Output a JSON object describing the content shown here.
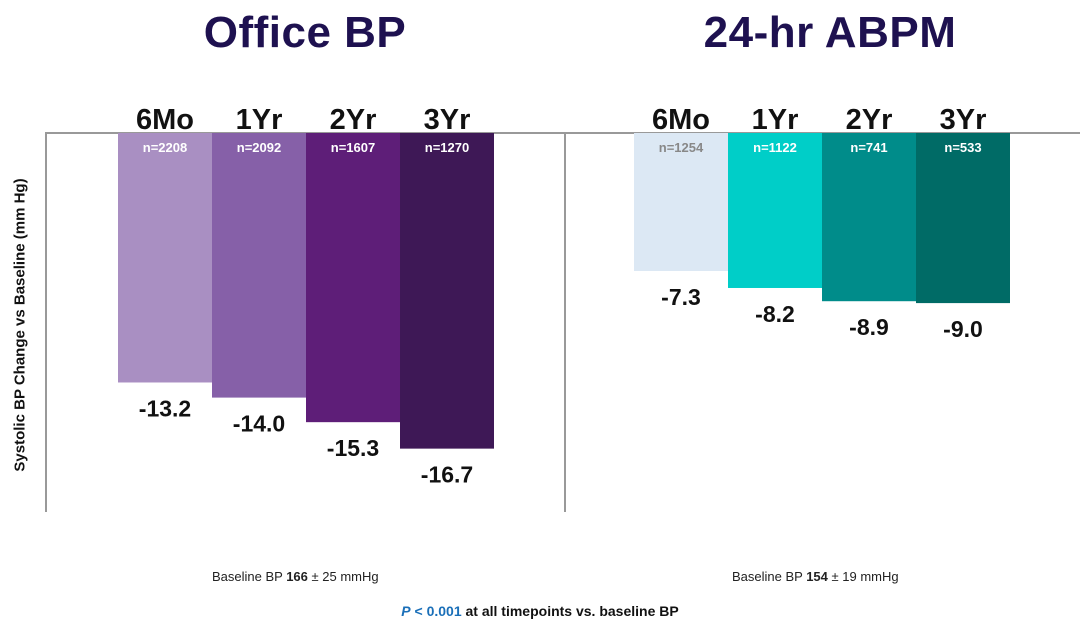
{
  "chart_data": [
    {
      "type": "bar",
      "title": "Office BP",
      "ylabel": "Systolic BP Change vs Baseline (mm Hg)",
      "categories": [
        "6Mo",
        "1Yr",
        "2Yr",
        "3Yr"
      ],
      "n_labels": [
        "n=2208",
        "n=2092",
        "n=1607",
        "n=1270"
      ],
      "values": [
        -13.2,
        -14.0,
        -15.3,
        -16.7
      ],
      "value_labels": [
        "-13.2",
        "-14.0",
        "-15.3",
        "-16.7"
      ],
      "ylim": [
        -19,
        0
      ],
      "colors": [
        "#a98fc2",
        "#8660a8",
        "#5e1e78",
        "#3e1856"
      ],
      "n_label_colors": [
        "#ffffff",
        "#ffffff",
        "#ffffff",
        "#ffffff"
      ],
      "baseline_note": {
        "prefix": "Baseline BP ",
        "value": "166",
        "suffix": " ± 25 mmHg"
      }
    },
    {
      "type": "bar",
      "title": "24-hr ABPM",
      "categories": [
        "6Mo",
        "1Yr",
        "2Yr",
        "3Yr"
      ],
      "n_labels": [
        "n=1254",
        "n=1122",
        "n=741",
        "n=533"
      ],
      "values": [
        -7.3,
        -8.2,
        -8.9,
        -9.0
      ],
      "value_labels": [
        "-7.3",
        "-8.2",
        "-8.9",
        "-9.0"
      ],
      "ylim": [
        -19,
        0
      ],
      "colors": [
        "#dce8f4",
        "#00cec8",
        "#008c8a",
        "#006b66"
      ],
      "n_label_colors": [
        "#888888",
        "#ffffff",
        "#ffffff",
        "#ffffff"
      ],
      "baseline_note": {
        "prefix": "Baseline BP ",
        "value": "154",
        "suffix": " ± 19 mmHg"
      }
    }
  ],
  "footnote": {
    "p_symbol": "P",
    "p_rest": " < 0.001",
    "text": " at all timepoints vs. baseline BP"
  },
  "axis_color": "#999999"
}
